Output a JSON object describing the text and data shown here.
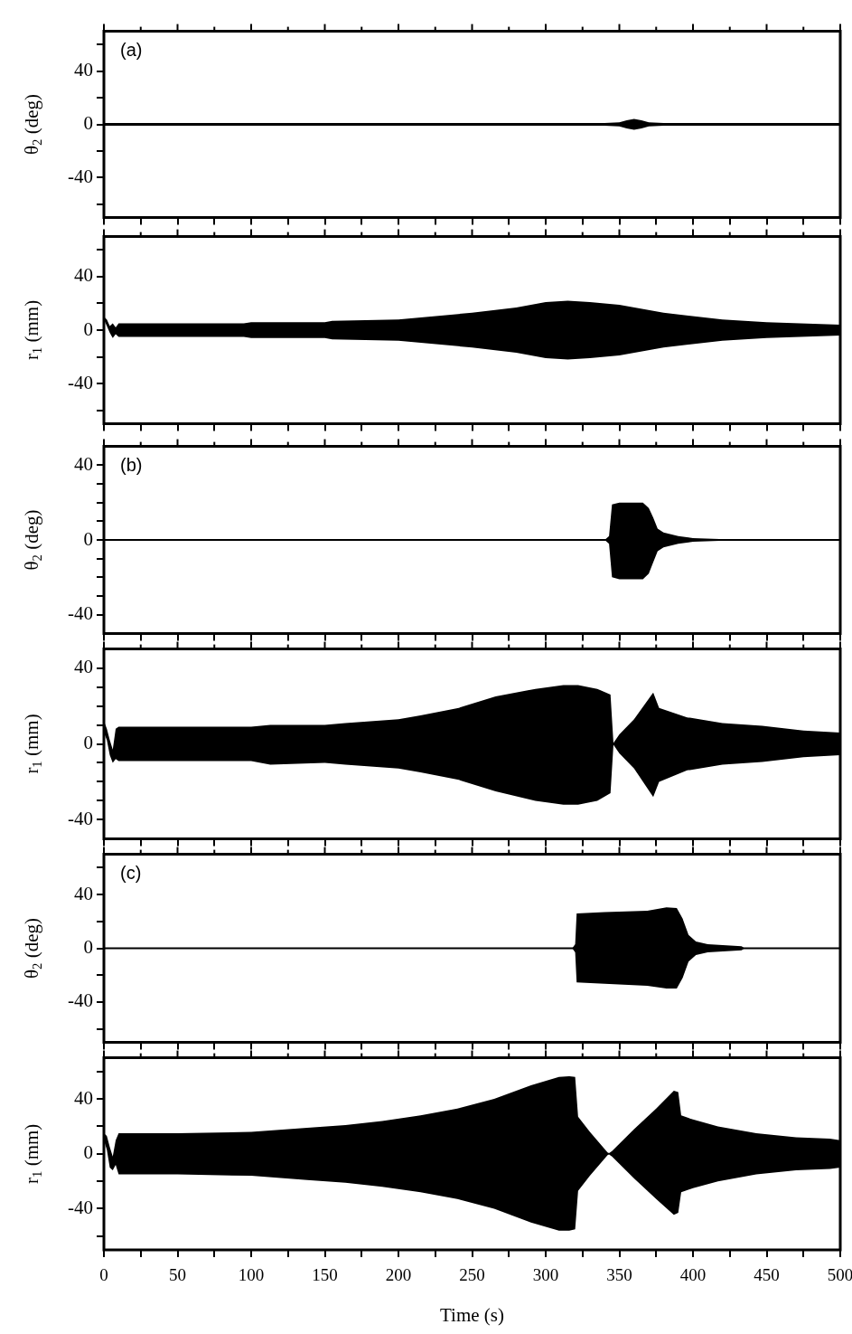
{
  "chart_data": [
    {
      "type": "line",
      "ylabel": "θ$_{2}$ (deg)",
      "annotations": [
        "(a)"
      ],
      "xlim": [
        0,
        500
      ],
      "xticks": [
        0,
        {
          "value": 25,
          "label": null
        },
        50,
        {
          "value": 75,
          "label": null
        },
        100,
        {
          "value": 125,
          "label": null
        },
        150,
        {
          "value": 175,
          "label": null
        },
        200,
        {
          "value": 225,
          "label": null
        },
        250,
        {
          "value": 275,
          "label": null
        },
        300,
        {
          "value": 325,
          "label": null
        },
        350,
        {
          "value": 375,
          "label": null
        },
        400,
        {
          "value": 425,
          "label": null
        },
        450,
        {
          "value": 475,
          "label": null
        },
        500
      ],
      "ylim": [
        -70,
        70
      ],
      "yticks": [
        {
          "value": -60,
          "label": null
        },
        -40,
        {
          "value": -20,
          "label": null
        },
        0,
        {
          "value": 20,
          "label": null
        },
        40,
        {
          "value": 60,
          "label": null
        }
      ],
      "tick_labels": "y",
      "grid": false,
      "legend": false,
      "marker": "none",
      "line_style": "solid",
      "series": [
        {
          "color": "#000000",
          "x": [
            0,
            50,
            100,
            150,
            200,
            250,
            300,
            340,
            350,
            355,
            360,
            365,
            370,
            380,
            400,
            450,
            500
          ],
          "values": [
            null,
            null,
            null,
            null,
            null,
            null,
            null,
            null,
            null,
            null,
            null,
            null,
            null,
            null,
            null,
            null,
            null
          ],
          "lower": [
            -1,
            -1,
            -1,
            -1,
            -1,
            -1,
            -1,
            -1,
            -1.5,
            -3,
            -4,
            -3,
            -1.5,
            -1,
            -1,
            -1,
            -1
          ],
          "upper": [
            1,
            1,
            1,
            1,
            1,
            1,
            1,
            1,
            1.5,
            3,
            4,
            3,
            1.5,
            1,
            1,
            1,
            1
          ]
        }
      ]
    },
    {
      "type": "line",
      "ylabel": "r$_{1}$ (mm)",
      "xlim": [
        0,
        500
      ],
      "xticks": [
        0,
        {
          "value": 25,
          "label": null
        },
        50,
        {
          "value": 75,
          "label": null
        },
        100,
        {
          "value": 125,
          "label": null
        },
        150,
        {
          "value": 175,
          "label": null
        },
        200,
        {
          "value": 225,
          "label": null
        },
        250,
        {
          "value": 275,
          "label": null
        },
        300,
        {
          "value": 325,
          "label": null
        },
        350,
        {
          "value": 375,
          "label": null
        },
        400,
        {
          "value": 425,
          "label": null
        },
        450,
        {
          "value": 475,
          "label": null
        },
        500
      ],
      "ylim": [
        -70,
        70
      ],
      "yticks": [
        {
          "value": -60,
          "label": null
        },
        -40,
        {
          "value": -20,
          "label": null
        },
        0,
        {
          "value": 20,
          "label": null
        },
        40,
        {
          "value": 60,
          "label": null
        }
      ],
      "tick_labels": "y",
      "grid": false,
      "legend": false,
      "marker": "none",
      "line_style": "solid",
      "series": [
        {
          "color": "#000000",
          "x": [
            0,
            2,
            4,
            6,
            8,
            10,
            50,
            95,
            100,
            150,
            155,
            200,
            250,
            280,
            300,
            315,
            330,
            350,
            380,
            420,
            450,
            500
          ],
          "values": [
            null,
            null,
            null,
            null,
            null,
            null,
            null,
            null,
            null,
            null,
            null,
            null,
            null,
            null,
            null,
            null,
            null,
            null,
            null,
            null,
            null,
            null
          ],
          "lower": [
            8,
            3,
            -2,
            -6,
            -3,
            -5,
            -5,
            -5,
            -6,
            -6,
            -7,
            -8,
            -13,
            -17,
            -21,
            -22,
            -21,
            -19,
            -13,
            -8,
            -6,
            -4
          ],
          "upper": [
            10,
            8,
            3,
            5,
            2,
            5,
            5,
            5,
            6,
            6,
            7,
            8,
            13,
            17,
            21,
            22,
            21,
            19,
            13,
            8,
            6,
            4
          ]
        }
      ]
    },
    {
      "type": "line",
      "ylabel": "θ$_{2}$ (deg)",
      "annotations": [
        "(b)"
      ],
      "xlim": [
        0,
        500
      ],
      "xticks": [
        0,
        {
          "value": 25,
          "label": null
        },
        50,
        {
          "value": 75,
          "label": null
        },
        100,
        {
          "value": 125,
          "label": null
        },
        150,
        {
          "value": 175,
          "label": null
        },
        200,
        {
          "value": 225,
          "label": null
        },
        250,
        {
          "value": 275,
          "label": null
        },
        300,
        {
          "value": 325,
          "label": null
        },
        350,
        {
          "value": 375,
          "label": null
        },
        400,
        {
          "value": 425,
          "label": null
        },
        450,
        {
          "value": 475,
          "label": null
        },
        500
      ],
      "ylim": [
        -50,
        50
      ],
      "yticks": [
        -40,
        {
          "value": -30,
          "label": null
        },
        {
          "value": -20,
          "label": null
        },
        {
          "value": -10,
          "label": null
        },
        0,
        {
          "value": 10,
          "label": null
        },
        {
          "value": 20,
          "label": null
        },
        {
          "value": 30,
          "label": null
        },
        40
      ],
      "tick_labels": "y",
      "grid": false,
      "legend": false,
      "marker": "none",
      "line_style": "solid",
      "series": [
        {
          "color": "#000000",
          "x": [
            0,
            340,
            343,
            345,
            350,
            360,
            366,
            370,
            373,
            376,
            380,
            390,
            400,
            418,
            420,
            500
          ],
          "values": [
            0,
            0,
            0,
            0,
            0,
            0,
            0,
            0,
            0,
            0,
            0,
            0,
            0,
            0,
            0,
            0
          ],
          "lower": [
            0,
            0,
            -2,
            -20,
            -21,
            -21,
            -21,
            -18,
            -12,
            -6,
            -4,
            -2,
            -1,
            -0.5,
            0,
            0
          ],
          "upper": [
            0,
            0,
            2,
            19,
            20,
            20,
            20,
            17,
            12,
            6,
            4,
            2,
            1,
            0.5,
            0,
            0
          ]
        }
      ]
    },
    {
      "type": "line",
      "ylabel": "r$_{1}$ (mm)",
      "xlim": [
        0,
        500
      ],
      "xticks": [
        0,
        {
          "value": 25,
          "label": null
        },
        50,
        {
          "value": 75,
          "label": null
        },
        100,
        {
          "value": 125,
          "label": null
        },
        150,
        {
          "value": 175,
          "label": null
        },
        200,
        {
          "value": 225,
          "label": null
        },
        250,
        {
          "value": 275,
          "label": null
        },
        300,
        {
          "value": 325,
          "label": null
        },
        350,
        {
          "value": 375,
          "label": null
        },
        400,
        {
          "value": 425,
          "label": null
        },
        450,
        {
          "value": 475,
          "label": null
        },
        500
      ],
      "ylim": [
        -50,
        50
      ],
      "yticks": [
        -40,
        {
          "value": -30,
          "label": null
        },
        {
          "value": -20,
          "label": null
        },
        {
          "value": -10,
          "label": null
        },
        0,
        {
          "value": 10,
          "label": null
        },
        {
          "value": 20,
          "label": null
        },
        {
          "value": 30,
          "label": null
        },
        40
      ],
      "tick_labels": "y",
      "grid": false,
      "legend": false,
      "marker": "none",
      "line_style": "solid",
      "series": [
        {
          "color": "#000000",
          "x": [
            0,
            2,
            4,
            6,
            8,
            10,
            50,
            100,
            113,
            150,
            164,
            200,
            215,
            241,
            266,
            293,
            312,
            322,
            335,
            344,
            346,
            350,
            360,
            373,
            377,
            396,
            420,
            447,
            475,
            500
          ],
          "values": [
            null,
            null,
            null,
            null,
            null,
            null,
            null,
            null,
            null,
            null,
            null,
            null,
            null,
            null,
            null,
            null,
            null,
            null,
            null,
            null,
            null,
            null,
            null,
            null,
            null,
            null,
            null,
            null,
            null,
            null
          ],
          "lower": [
            6,
            2,
            -6,
            -10,
            -8,
            -9,
            -9,
            -9,
            -11,
            -10,
            -11,
            -13,
            -15,
            -19,
            -25,
            -30,
            -32,
            -32,
            -30,
            -26,
            -0.5,
            -5,
            -13,
            -28,
            -20,
            -14,
            -11,
            -9.5,
            -7,
            -6
          ],
          "upper": [
            12,
            8,
            2,
            -3,
            8,
            9,
            9,
            9,
            10,
            10,
            11,
            13,
            15,
            19,
            25,
            29,
            31,
            31,
            29,
            26,
            0.5,
            5,
            13,
            27,
            19,
            14,
            11,
            9.5,
            7,
            6
          ]
        }
      ]
    },
    {
      "type": "line",
      "ylabel": "θ$_{2}$ (deg)",
      "annotations": [
        "(c)"
      ],
      "xlim": [
        0,
        500
      ],
      "xticks": [
        0,
        {
          "value": 25,
          "label": null
        },
        50,
        {
          "value": 75,
          "label": null
        },
        100,
        {
          "value": 125,
          "label": null
        },
        150,
        {
          "value": 175,
          "label": null
        },
        200,
        {
          "value": 225,
          "label": null
        },
        250,
        {
          "value": 275,
          "label": null
        },
        300,
        {
          "value": 325,
          "label": null
        },
        350,
        {
          "value": 375,
          "label": null
        },
        400,
        {
          "value": 425,
          "label": null
        },
        450,
        {
          "value": 475,
          "label": null
        },
        500
      ],
      "ylim": [
        -70,
        70
      ],
      "yticks": [
        {
          "value": -60,
          "label": null
        },
        -40,
        {
          "value": -20,
          "label": null
        },
        0,
        {
          "value": 20,
          "label": null
        },
        40,
        {
          "value": 60,
          "label": null
        }
      ],
      "tick_labels": "y",
      "grid": false,
      "legend": false,
      "marker": "none",
      "line_style": "solid",
      "series": [
        {
          "color": "#000000",
          "x": [
            0,
            318,
            320,
            321,
            340,
            369,
            382,
            389,
            393,
            397,
            402,
            410,
            433,
            435,
            500
          ],
          "values": [
            0,
            0,
            0,
            0,
            0,
            0,
            0,
            0,
            0,
            0,
            0,
            0,
            0,
            0,
            0
          ],
          "lower": [
            0,
            0,
            -3,
            -25.5,
            -26.5,
            -28,
            -30,
            -30,
            -22,
            -10,
            -5,
            -3,
            -1.5,
            0,
            0
          ],
          "upper": [
            0,
            0,
            3,
            26,
            27,
            28,
            30.5,
            30,
            22,
            10,
            5,
            3,
            1.5,
            0,
            0
          ]
        }
      ]
    },
    {
      "type": "line",
      "xlabel": "Time (s)",
      "ylabel": "r$_{1}$ (mm)",
      "xlim": [
        0,
        500
      ],
      "xticks": [
        0,
        {
          "value": 25,
          "label": null
        },
        50,
        {
          "value": 75,
          "label": null
        },
        100,
        {
          "value": 125,
          "label": null
        },
        150,
        {
          "value": 175,
          "label": null
        },
        200,
        {
          "value": 225,
          "label": null
        },
        250,
        {
          "value": 275,
          "label": null
        },
        300,
        {
          "value": 325,
          "label": null
        },
        350,
        {
          "value": 375,
          "label": null
        },
        400,
        {
          "value": 425,
          "label": null
        },
        450,
        {
          "value": 475,
          "label": null
        },
        500
      ],
      "ylim": [
        -70,
        70
      ],
      "yticks": [
        {
          "value": -60,
          "label": null
        },
        -40,
        {
          "value": -20,
          "label": null
        },
        0,
        {
          "value": 20,
          "label": null
        },
        40,
        {
          "value": 60,
          "label": null
        }
      ],
      "grid": false,
      "legend": false,
      "marker": "none",
      "line_style": "solid",
      "series": [
        {
          "color": "#000000",
          "x": [
            0,
            2,
            4,
            6,
            8,
            10,
            50,
            100,
            138,
            164,
            189,
            215,
            240,
            265,
            290,
            309,
            316,
            320,
            322,
            330,
            342,
            343,
            345,
            360,
            375,
            387,
            390,
            392,
            400,
            417,
            443,
            470,
            493,
            500
          ],
          "values": [
            null,
            null,
            null,
            null,
            null,
            null,
            null,
            null,
            null,
            null,
            null,
            null,
            null,
            null,
            null,
            null,
            null,
            null,
            null,
            null,
            null,
            null,
            null,
            null,
            null,
            null,
            null,
            null,
            null,
            null,
            null,
            null,
            null,
            null
          ],
          "lower": [
            10,
            3,
            -10,
            -12,
            -8,
            -15,
            -15,
            -16,
            -19,
            -21,
            -24,
            -28,
            -33,
            -40,
            -50,
            -56,
            -56,
            -55,
            -27,
            -16,
            -1,
            -0.5,
            -2,
            -18,
            -33,
            -44.5,
            -43,
            -28,
            -25,
            -20,
            -15,
            -12,
            -11,
            -10
          ],
          "upper": [
            15,
            13,
            5,
            -2,
            10,
            15,
            15,
            16,
            19,
            21,
            24,
            28,
            33,
            40,
            50,
            56,
            56.5,
            56,
            27,
            16,
            1,
            0.5,
            2,
            18,
            33,
            46,
            45,
            28,
            25,
            20,
            15,
            12,
            11,
            10
          ]
        }
      ]
    }
  ]
}
